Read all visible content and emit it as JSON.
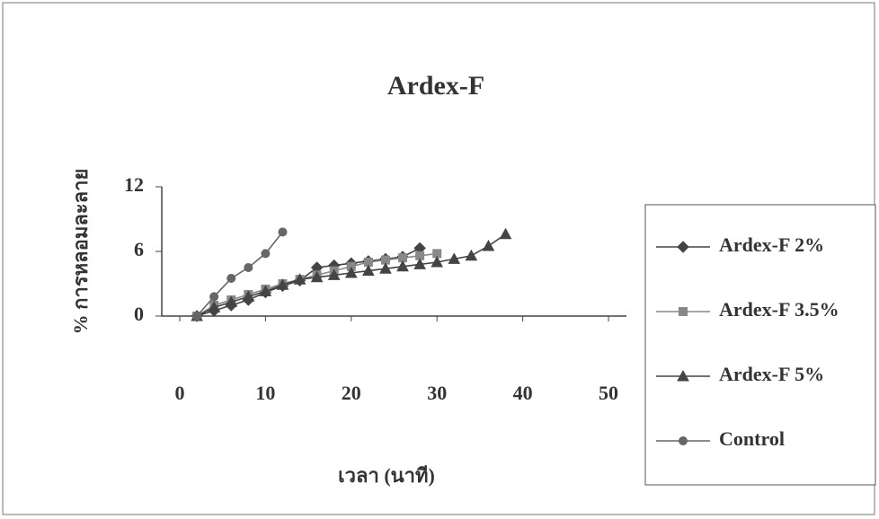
{
  "chart_data": {
    "type": "line",
    "title": "Ardex-F",
    "x_label": "เวลา (นาที)",
    "y_label": "% การหลอมละลาย",
    "xlim": [
      0,
      50
    ],
    "ylim": [
      0,
      12
    ],
    "xticks": [
      0,
      10,
      20,
      30,
      40,
      50
    ],
    "yticks": [
      0,
      6,
      12
    ],
    "series": [
      {
        "name": "Ardex-F 2%",
        "color": "#444444",
        "marker": "diamond",
        "x": [
          2,
          4,
          6,
          8,
          10,
          12,
          14,
          16,
          18,
          20,
          22,
          24,
          26,
          28
        ],
        "values": [
          0,
          0.5,
          1,
          1.5,
          2.2,
          2.8,
          3.3,
          4.5,
          4.7,
          4.9,
          5.1,
          5.3,
          5.5,
          6.3
        ]
      },
      {
        "name": "Ardex-F 3.5%",
        "color": "#888888",
        "marker": "square",
        "x": [
          2,
          4,
          6,
          8,
          10,
          12,
          14,
          16,
          18,
          20,
          22,
          24,
          26,
          28,
          30
        ],
        "values": [
          0,
          1,
          1.5,
          2,
          2.5,
          3,
          3.4,
          3.8,
          4.2,
          4.6,
          5,
          5.2,
          5.4,
          5.6,
          5.8
        ]
      },
      {
        "name": "Ardex-F 5%",
        "color": "#444444",
        "marker": "triangle",
        "x": [
          2,
          4,
          6,
          8,
          10,
          12,
          14,
          16,
          18,
          20,
          22,
          24,
          26,
          28,
          30,
          32,
          34,
          36,
          38
        ],
        "values": [
          0,
          0.8,
          1.3,
          1.8,
          2.3,
          2.9,
          3.4,
          3.6,
          3.8,
          4,
          4.2,
          4.4,
          4.6,
          4.8,
          5,
          5.3,
          5.6,
          6.5,
          7.6
        ]
      },
      {
        "name": "Control",
        "color": "#666666",
        "marker": "circle",
        "x": [
          2,
          4,
          6,
          8,
          10,
          12
        ],
        "values": [
          0,
          1.8,
          3.5,
          4.5,
          5.8,
          7.8
        ]
      }
    ]
  }
}
